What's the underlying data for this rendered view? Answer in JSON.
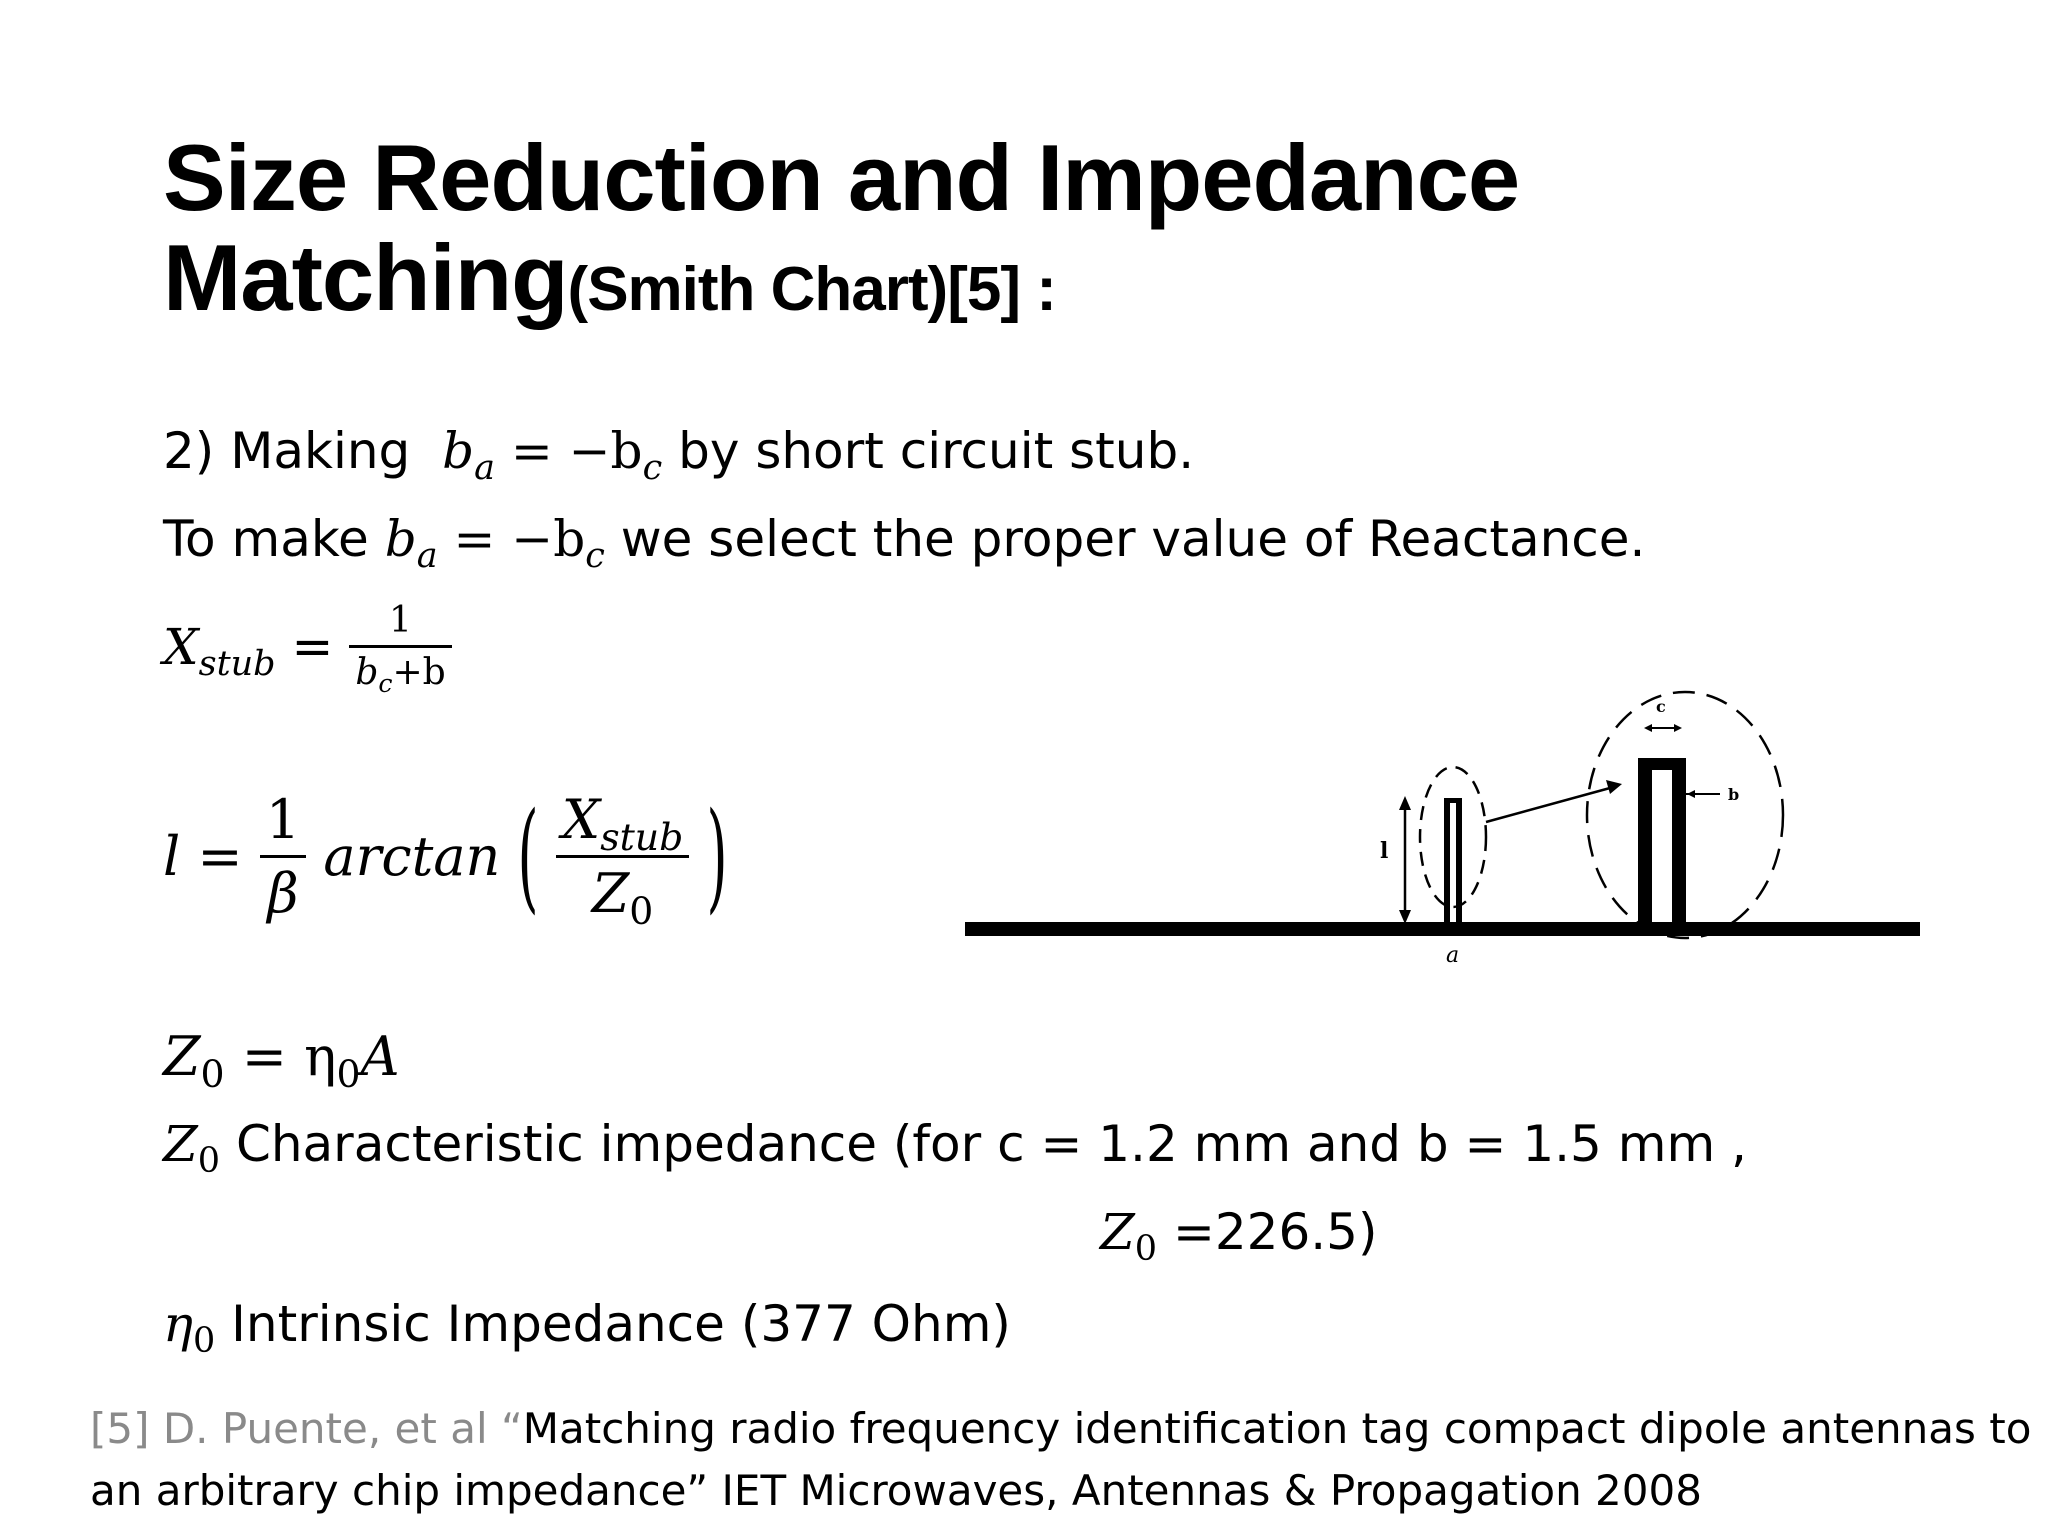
{
  "title": {
    "line1": "Size Reduction and Impedance",
    "line2_main": "Matching",
    "line2_sub": "(Smith Chart)[5] :"
  },
  "steps": {
    "line1_prefix": "2) Making",
    "line1_suffix": "by short circuit stub.",
    "line2_prefix": "To make",
    "line2_suffix": "we select the proper value of Reactance."
  },
  "equations": {
    "ba": "b",
    "ba_sub": "a",
    "eq_minus": "= −b",
    "bc_sub": "c",
    "xstub_lhs": "X",
    "xstub_lhs_sub": "stub",
    "xstub_eq": "=",
    "xstub_num": "1",
    "xstub_den_b": "b",
    "xstub_den_sub": "c",
    "xstub_den_rest": "+b",
    "l_lhs": "l =",
    "l_num": "1",
    "l_den": "β",
    "l_fn": "arctan",
    "l_inner_num": "X",
    "l_inner_num_sub": "stub",
    "l_inner_den": "Z",
    "l_inner_den_sub": "0",
    "z0_lhs": "Z",
    "z0_lhs_sub": "0",
    "z0_rhs": "= η",
    "z0_rhs_sub": "0",
    "z0_rhs_end": "A"
  },
  "definitions": {
    "z0_sym": "Z",
    "z0_sub": "0",
    "z0_text": "Characteristic impedance (for c = 1.2 mm and b = 1.5 mm ,",
    "z0_value_sym": "Z",
    "z0_value_sub": "0",
    "z0_value_text": "=226.5)",
    "eta_sym": "η",
    "eta_sub": "0",
    "eta_text": "Intrinsic Impedance (377 Ohm)"
  },
  "diagram": {
    "label_l": "l",
    "label_a": "a",
    "label_c": "c",
    "label_b": "b"
  },
  "reference": {
    "grey_part": "[5] D. Puente, et al “",
    "line1_black": "Matching radio frequency identification tag compact dipole antennas to",
    "line2": "an arbitrary chip impedance” IET Microwaves, Antennas & Propagation 2008"
  }
}
